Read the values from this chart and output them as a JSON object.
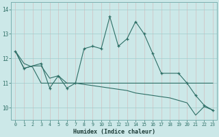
{
  "xlabel": "Humidex (Indice chaleur)",
  "bg_color": "#cce8e8",
  "grid_color": "#a0cccc",
  "line_color": "#2d6e65",
  "x": [
    0,
    1,
    2,
    3,
    4,
    5,
    6,
    7,
    8,
    9,
    10,
    11,
    12,
    13,
    14,
    15,
    16,
    17,
    18,
    19,
    20,
    21,
    22,
    23
  ],
  "line_jagged": [
    12.3,
    11.6,
    null,
    11.8,
    10.8,
    11.3,
    10.8,
    11.0,
    12.4,
    12.5,
    12.4,
    13.7,
    12.5,
    12.8,
    13.5,
    13.0,
    12.2,
    11.4,
    null,
    11.4,
    11.0,
    10.5,
    10.1,
    9.9
  ],
  "line_flat": [
    12.3,
    11.8,
    11.65,
    11.0,
    11.0,
    11.0,
    11.0,
    11.0,
    11.0,
    11.0,
    11.0,
    11.0,
    11.0,
    11.0,
    11.0,
    11.0,
    11.0,
    11.0,
    11.0,
    11.0,
    11.0,
    11.0,
    11.0,
    11.0
  ],
  "line_decline": [
    12.3,
    11.6,
    11.7,
    11.7,
    11.2,
    11.3,
    11.0,
    11.0,
    10.95,
    10.9,
    10.85,
    10.8,
    10.75,
    10.7,
    10.6,
    10.55,
    10.5,
    10.45,
    10.4,
    10.3,
    10.2,
    9.7,
    10.05,
    9.9
  ],
  "ylim": [
    9.5,
    14.3
  ],
  "yticks": [
    10,
    11,
    12,
    13,
    14
  ],
  "xticks": [
    0,
    1,
    2,
    3,
    4,
    5,
    6,
    7,
    8,
    9,
    10,
    11,
    12,
    13,
    14,
    15,
    16,
    17,
    18,
    19,
    20,
    21,
    22,
    23
  ]
}
